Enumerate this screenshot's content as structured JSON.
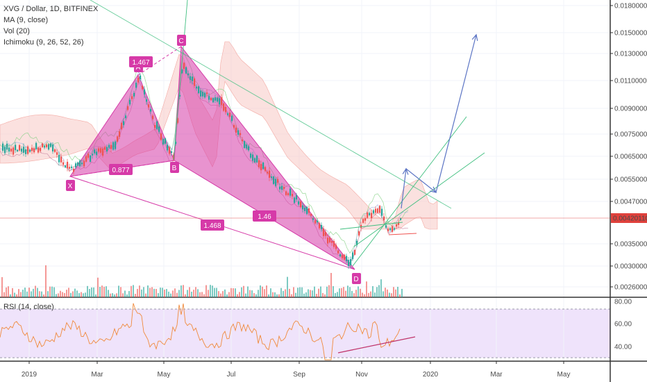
{
  "legend": {
    "title": "XVG / Dollar, 1D, BITFINEX",
    "ma": "MA (9, close)",
    "vol": "Vol (20)",
    "ichimoku": "Ichimoku (9, 26, 52, 26)"
  },
  "rsi_legend": "RSI (14, close)",
  "colors": {
    "up": "#26a69a",
    "down": "#ef5350",
    "pattern": "#d63aa8",
    "arrow": "#5b74c4",
    "trend": "#3fbf7f",
    "rsi_line": "#f08a3c",
    "rsi_band": "#efe3fb",
    "price_tag": "#e0413c"
  },
  "price_axis": [
    "0.01800000",
    "0.01500000",
    "0.01300000",
    "0.01100000",
    "0.00900000",
    "0.00750000",
    "0.00650000",
    "0.00550000",
    "0.00470000",
    "0.00350000",
    "0.00300000",
    "0.00260000"
  ],
  "current_price": "0.00420110",
  "rsi_axis": [
    "80.00",
    "60.00",
    "40.00"
  ],
  "time_axis": [
    "2019",
    "Mar",
    "May",
    "Jul",
    "Sep",
    "Nov",
    "2020",
    "Mar",
    "May"
  ],
  "pattern_points": [
    "X",
    "A",
    "B",
    "C",
    "D"
  ],
  "ratios": [
    "0.877",
    "1.467",
    "1.46",
    "1.468"
  ],
  "chart_data": {
    "type": "candlestick",
    "title": "XVG / Dollar, 1D, BITFINEX",
    "xlabel": "",
    "ylabel": "",
    "price_scale": "log",
    "ylim": [
      0.0024,
      0.0195
    ],
    "x_range": [
      "2018-12-10",
      "2020-06-20"
    ],
    "key_points": [
      {
        "label": "X",
        "date": "2019-02-10",
        "price": 0.0054
      },
      {
        "label": "A",
        "date": "2019-03-28",
        "price": 0.0112
      },
      {
        "label": "B",
        "date": "2019-04-28",
        "price": 0.0061
      },
      {
        "label": "C",
        "date": "2019-05-14",
        "price": 0.0135
      },
      {
        "label": "D",
        "date": "2019-10-20",
        "price": 0.0029
      }
    ],
    "current_price": 0.0042011,
    "rsi": {
      "label": "RSI (14, close)",
      "ticks": [
        40,
        60,
        80
      ],
      "band": [
        30,
        70
      ]
    }
  }
}
